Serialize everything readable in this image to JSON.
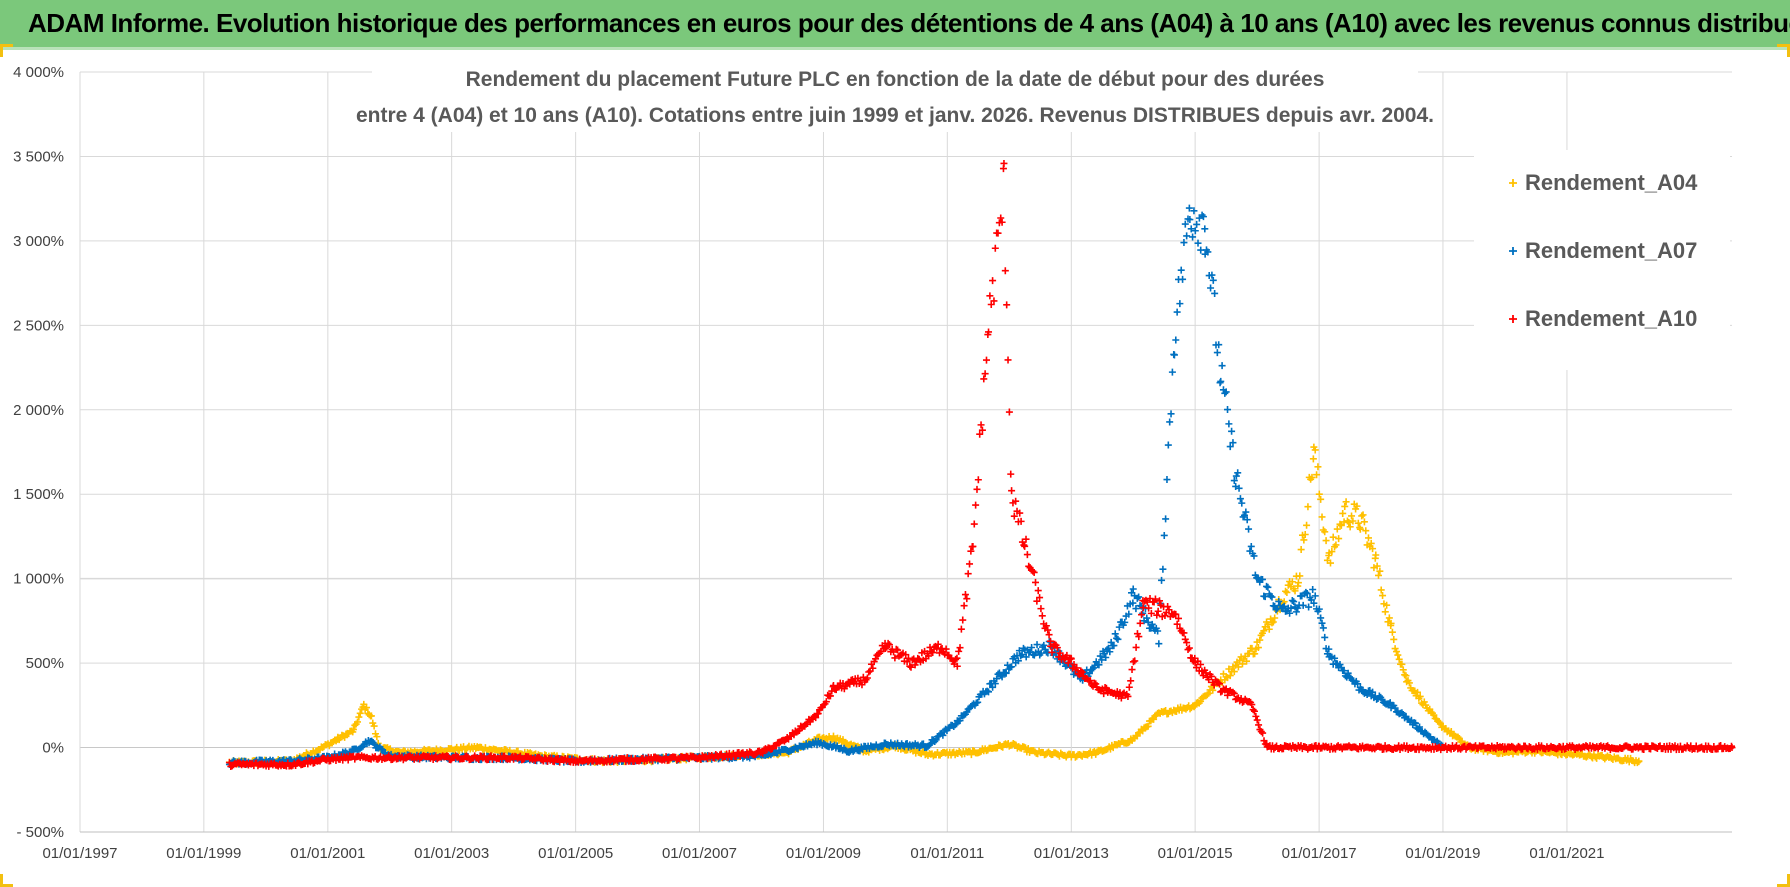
{
  "banner": {
    "title": "ADAM Informe. Evolution historique des performances en euros pour des détentions de 4 ans (A04) à 10 ans (A10) avec les revenus connus distribués"
  },
  "chart_data": {
    "type": "scatter",
    "title_line1": "Rendement du placement Future PLC en fonction de la date de début pour des durées",
    "title_line2": "entre 4 (A04) et 10 ans (A10). Cotations entre juin 1999 et janv. 2026. Revenus DISTRIBUES depuis avr. 2004.",
    "xlabel": "",
    "ylabel": "",
    "x_range": [
      "1997-01-01",
      "2023-09-01"
    ],
    "ylim": [
      -500,
      4000
    ],
    "y_ticks": [
      -500,
      0,
      500,
      1000,
      1500,
      2000,
      2500,
      3000,
      3500,
      4000
    ],
    "y_tick_labels": [
      "- 500%",
      "0%",
      "500%",
      "1 000%",
      "1 500%",
      "2 000%",
      "2 500%",
      "3 000%",
      "3 500%",
      "4 000%"
    ],
    "x_ticks": [
      "1997-01-01",
      "1999-01-01",
      "2001-01-01",
      "2003-01-01",
      "2005-01-01",
      "2007-01-01",
      "2009-01-01",
      "2011-01-01",
      "2013-01-01",
      "2015-01-01",
      "2017-01-01",
      "2019-01-01",
      "2021-01-01"
    ],
    "x_tick_labels": [
      "01/01/1997",
      "01/01/1999",
      "01/01/2001",
      "01/01/2003",
      "01/01/2005",
      "01/01/2007",
      "01/01/2009",
      "01/01/2011",
      "01/01/2013",
      "01/01/2015",
      "01/01/2017",
      "01/01/2019",
      "01/01/2021"
    ],
    "grid": "vertical and horizontal",
    "legend_position": "top-right",
    "marker": "+",
    "series": [
      {
        "name": "Rendement_A04",
        "color": "#ffc000",
        "x": [
          "1999-06-01",
          "2000-06-01",
          "2000-12-01",
          "2001-03-01",
          "2001-06-01",
          "2001-08-01",
          "2001-09-15",
          "2001-11-01",
          "2002-03-01",
          "2002-09-01",
          "2003-06-01",
          "2004-06-01",
          "2005-06-01",
          "2006-06-01",
          "2007-06-01",
          "2008-06-01",
          "2008-12-01",
          "2009-03-01",
          "2009-09-01",
          "2010-03-01",
          "2010-09-01",
          "2011-06-01",
          "2012-01-01",
          "2012-06-01",
          "2013-01-01",
          "2013-06-01",
          "2014-01-01",
          "2014-06-01",
          "2015-01-01",
          "2015-06-01",
          "2016-01-01",
          "2016-06-01",
          "2016-09-01",
          "2016-12-01",
          "2017-03-01",
          "2017-06-01",
          "2017-09-01",
          "2017-12-01",
          "2018-03-01",
          "2018-06-01",
          "2018-12-01",
          "2019-06-01",
          "2020-01-01",
          "2020-06-01",
          "2021-06-01",
          "2022-03-01"
        ],
        "y": [
          -90,
          -80,
          0,
          50,
          100,
          250,
          180,
          0,
          -30,
          -20,
          0,
          -50,
          -80,
          -70,
          -50,
          -30,
          50,
          60,
          -20,
          10,
          -40,
          -30,
          20,
          -30,
          -50,
          -30,
          50,
          200,
          250,
          400,
          600,
          900,
          1000,
          1750,
          1100,
          1400,
          1350,
          1100,
          700,
          400,
          150,
          0,
          -30,
          -20,
          -50,
          -80
        ]
      },
      {
        "name": "Rendement_A07",
        "color": "#0070c0",
        "x": [
          "1999-06-01",
          "2000-06-01",
          "2001-01-01",
          "2001-06-01",
          "2001-09-01",
          "2002-01-01",
          "2003-01-01",
          "2004-01-01",
          "2005-01-01",
          "2006-01-01",
          "2007-01-01",
          "2008-01-01",
          "2008-12-01",
          "2009-06-01",
          "2010-01-01",
          "2010-09-01",
          "2011-03-01",
          "2011-09-01",
          "2012-03-01",
          "2012-09-01",
          "2013-03-01",
          "2013-09-01",
          "2014-01-01",
          "2014-06-01",
          "2014-09-01",
          "2014-12-01",
          "2015-03-01",
          "2015-06-01",
          "2015-09-01",
          "2016-01-01",
          "2016-06-01",
          "2016-12-01",
          "2017-03-01",
          "2017-09-01",
          "2018-03-01",
          "2018-09-01",
          "2019-01-01"
        ],
        "y": [
          -90,
          -80,
          -60,
          -20,
          40,
          -50,
          -60,
          -60,
          -80,
          -70,
          -60,
          -50,
          30,
          -20,
          20,
          10,
          150,
          350,
          550,
          600,
          400,
          600,
          900,
          650,
          2450,
          3200,
          3100,
          2200,
          1600,
          1000,
          800,
          900,
          550,
          350,
          250,
          100,
          0
        ]
      },
      {
        "name": "Rendement_A10",
        "color": "#ff0000",
        "x": [
          "1999-06-01",
          "2000-06-01",
          "2001-01-01",
          "2001-06-01",
          "2002-01-01",
          "2003-01-01",
          "2004-01-01",
          "2005-01-01",
          "2006-01-01",
          "2007-01-01",
          "2008-01-01",
          "2008-06-01",
          "2008-12-01",
          "2009-03-01",
          "2009-09-01",
          "2010-01-01",
          "2010-06-01",
          "2010-12-01",
          "2011-03-01",
          "2011-06-01",
          "2011-09-01",
          "2011-12-01",
          "2012-01-15",
          "2012-04-01",
          "2012-09-01",
          "2013-01-01",
          "2013-06-01",
          "2013-12-01",
          "2014-03-01",
          "2014-09-01",
          "2015-01-01",
          "2015-06-01",
          "2015-12-01",
          "2016-03-01",
          "2016-04-01",
          "2017-01-01",
          "2018-01-01",
          "2019-01-01",
          "2020-01-01",
          "2021-01-01",
          "2022-01-01",
          "2023-01-01",
          "2023-09-01"
        ],
        "y": [
          -100,
          -100,
          -70,
          -60,
          -60,
          -60,
          -60,
          -80,
          -70,
          -60,
          -30,
          50,
          200,
          350,
          400,
          600,
          500,
          600,
          500,
          1200,
          2500,
          3300,
          1500,
          1200,
          600,
          500,
          350,
          300,
          850,
          800,
          500,
          350,
          250,
          0,
          0,
          0,
          0,
          0,
          0,
          0,
          0,
          0,
          0
        ]
      }
    ]
  }
}
